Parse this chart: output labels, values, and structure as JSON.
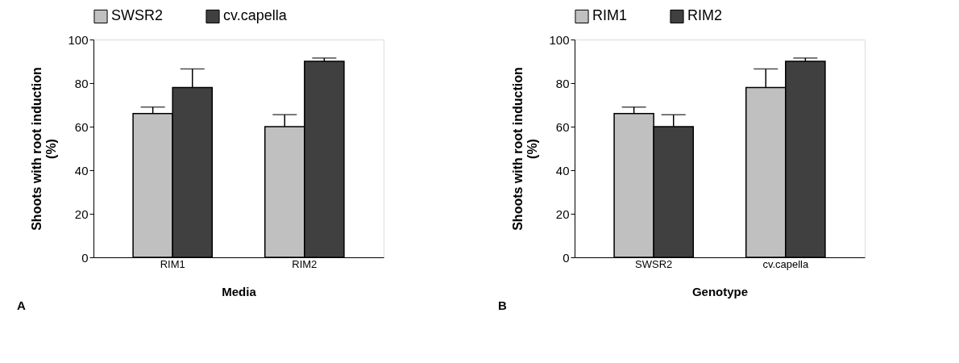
{
  "chart_data": [
    {
      "type": "bar",
      "xlabel": "Media",
      "ylabel": "Shoots with root induction\n(%)",
      "categories": [
        "RIM1",
        "RIM2"
      ],
      "ylim": [
        0,
        100
      ],
      "yticks": [
        0,
        20,
        40,
        60,
        80,
        100
      ],
      "legend": "top",
      "grid": false,
      "series": [
        {
          "name": "SWSR2",
          "color": "#c0c0c0",
          "values": [
            66,
            60
          ],
          "errors": [
            [
              66,
              69
            ],
            [
              60,
              65.5
            ]
          ]
        },
        {
          "name": "cv.capella",
          "color": "#404040",
          "values": [
            78,
            90
          ],
          "errors": [
            [
              78,
              86.5
            ],
            [
              90,
              91.5
            ]
          ]
        }
      ],
      "annotations": [
        "A"
      ]
    },
    {
      "type": "bar",
      "xlabel": "Genotype",
      "ylabel": "Shoots with root induction\n(%)",
      "categories": [
        "SWSR2",
        "cv.capella"
      ],
      "ylim": [
        0,
        100
      ],
      "yticks": [
        0,
        20,
        40,
        60,
        80,
        100
      ],
      "legend": "top",
      "grid": false,
      "series": [
        {
          "name": "RIM1",
          "color": "#c0c0c0",
          "values": [
            66,
            78
          ],
          "errors": [
            [
              66,
              69
            ],
            [
              78,
              86.5
            ]
          ]
        },
        {
          "name": "RIM2",
          "color": "#404040",
          "values": [
            60,
            90
          ],
          "errors": [
            [
              60,
              65.5
            ],
            [
              90,
              91.5
            ]
          ]
        }
      ],
      "annotations": [
        "B"
      ]
    }
  ]
}
